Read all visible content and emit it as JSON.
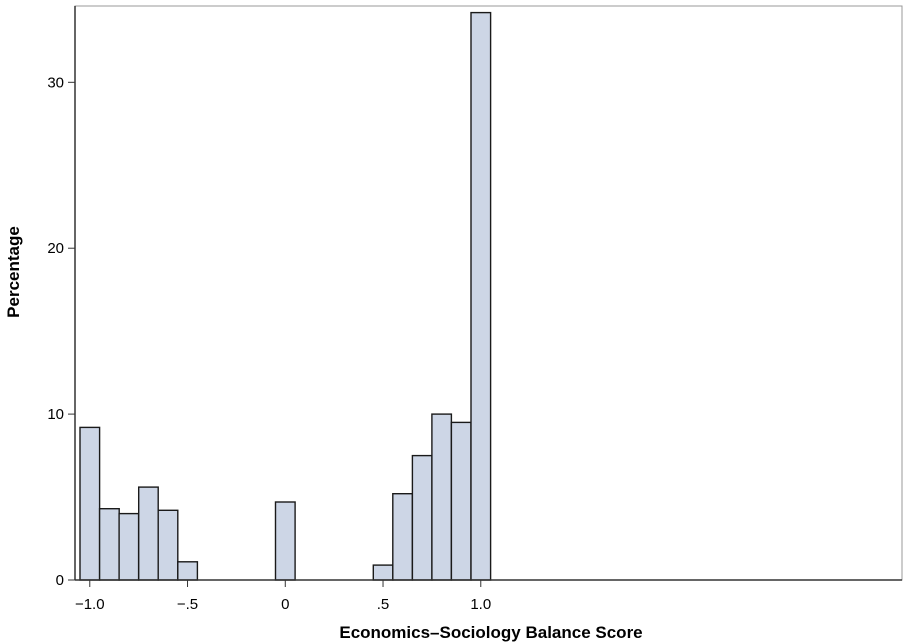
{
  "chart_data": {
    "type": "bar",
    "title": "",
    "xlabel": "Economics–Sociology Balance Score",
    "ylabel": "Percentage",
    "xlim": [
      -1.05,
      1.05
    ],
    "ylim": [
      0,
      34.6
    ],
    "bin_width": 0.1,
    "x_ticks": [
      {
        "value": -1.0,
        "label": "−1.0"
      },
      {
        "value": -0.5,
        "label": "−.5"
      },
      {
        "value": 0,
        "label": "0"
      },
      {
        "value": 0.5,
        "label": ".5"
      },
      {
        "value": 1.0,
        "label": "1.0"
      }
    ],
    "y_ticks": [
      {
        "value": 0,
        "label": "0"
      },
      {
        "value": 10,
        "label": "10"
      },
      {
        "value": 20,
        "label": "20"
      },
      {
        "value": 30,
        "label": "30"
      }
    ],
    "bins": [
      {
        "x0": -1.05,
        "x1": -0.95,
        "value": 9.2
      },
      {
        "x0": -0.95,
        "x1": -0.85,
        "value": 4.3
      },
      {
        "x0": -0.85,
        "x1": -0.75,
        "value": 4.0
      },
      {
        "x0": -0.75,
        "x1": -0.65,
        "value": 5.6
      },
      {
        "x0": -0.65,
        "x1": -0.55,
        "value": 4.2
      },
      {
        "x0": -0.55,
        "x1": -0.45,
        "value": 1.1
      },
      {
        "x0": -0.05,
        "x1": 0.05,
        "value": 4.7
      },
      {
        "x0": 0.45,
        "x1": 0.55,
        "value": 0.9
      },
      {
        "x0": 0.55,
        "x1": 0.65,
        "value": 5.2
      },
      {
        "x0": 0.65,
        "x1": 0.75,
        "value": 7.5
      },
      {
        "x0": 0.75,
        "x1": 0.85,
        "value": 10.0
      },
      {
        "x0": 0.85,
        "x1": 0.95,
        "value": 9.5
      },
      {
        "x0": 0.95,
        "x1": 1.05,
        "value": 34.2
      }
    ],
    "grid": false,
    "colors": {
      "bar_fill": "#cdd6e6",
      "bar_stroke": "#1a1a1a",
      "axis": "#333333",
      "frame": "#999999"
    }
  }
}
